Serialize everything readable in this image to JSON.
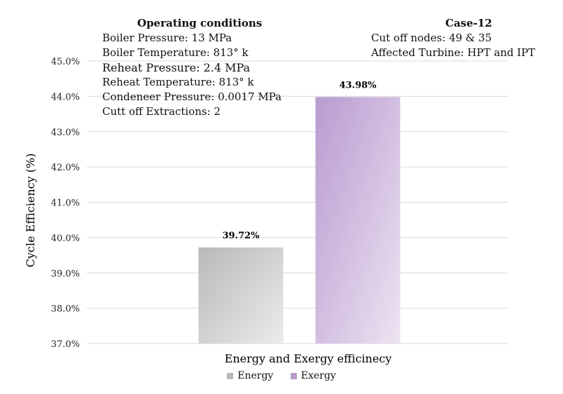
{
  "chart_data": {
    "type": "bar",
    "categories": [
      "Energy",
      "Exergy"
    ],
    "values": [
      39.72,
      43.98
    ],
    "data_labels": [
      "39.72%",
      "43.98%"
    ],
    "xlabel": "Energy and Exergy efficinecy",
    "ylabel": "Cycle Efficiency (%)",
    "ylim": [
      37.0,
      45.0
    ],
    "yticks": [
      "37.0%",
      "38.0%",
      "39.0%",
      "40.0%",
      "41.0%",
      "42.0%",
      "43.0%",
      "44.0%",
      "45.0%"
    ],
    "grid": true,
    "legend": {
      "placement": "bottom",
      "entries": [
        "Energy",
        "Exergy"
      ]
    },
    "colors": {
      "energy_dark": "#b8b8b8",
      "energy_light": "#ececec",
      "exergy_dark": "#b89bd0",
      "exergy_light": "#ede3f1",
      "grid": "#d9d9d9"
    }
  },
  "annotations": {
    "conditions": {
      "heading": "Operating conditions",
      "lines": [
        "Boiler Pressure: 13 MPa",
        "Boiler Temperature: 813° k",
        "Reheat Pressure: 2.4 MPa",
        "Reheat Temperature: 813° k",
        "Condeneer Pressure: 0.0017 MPa",
        "Cutt off Extractions: 2"
      ]
    },
    "case": {
      "heading": "Case-12",
      "lines": [
        "Cut off nodes: 49 & 35",
        "Affected Turbine: HPT and IPT"
      ]
    }
  }
}
